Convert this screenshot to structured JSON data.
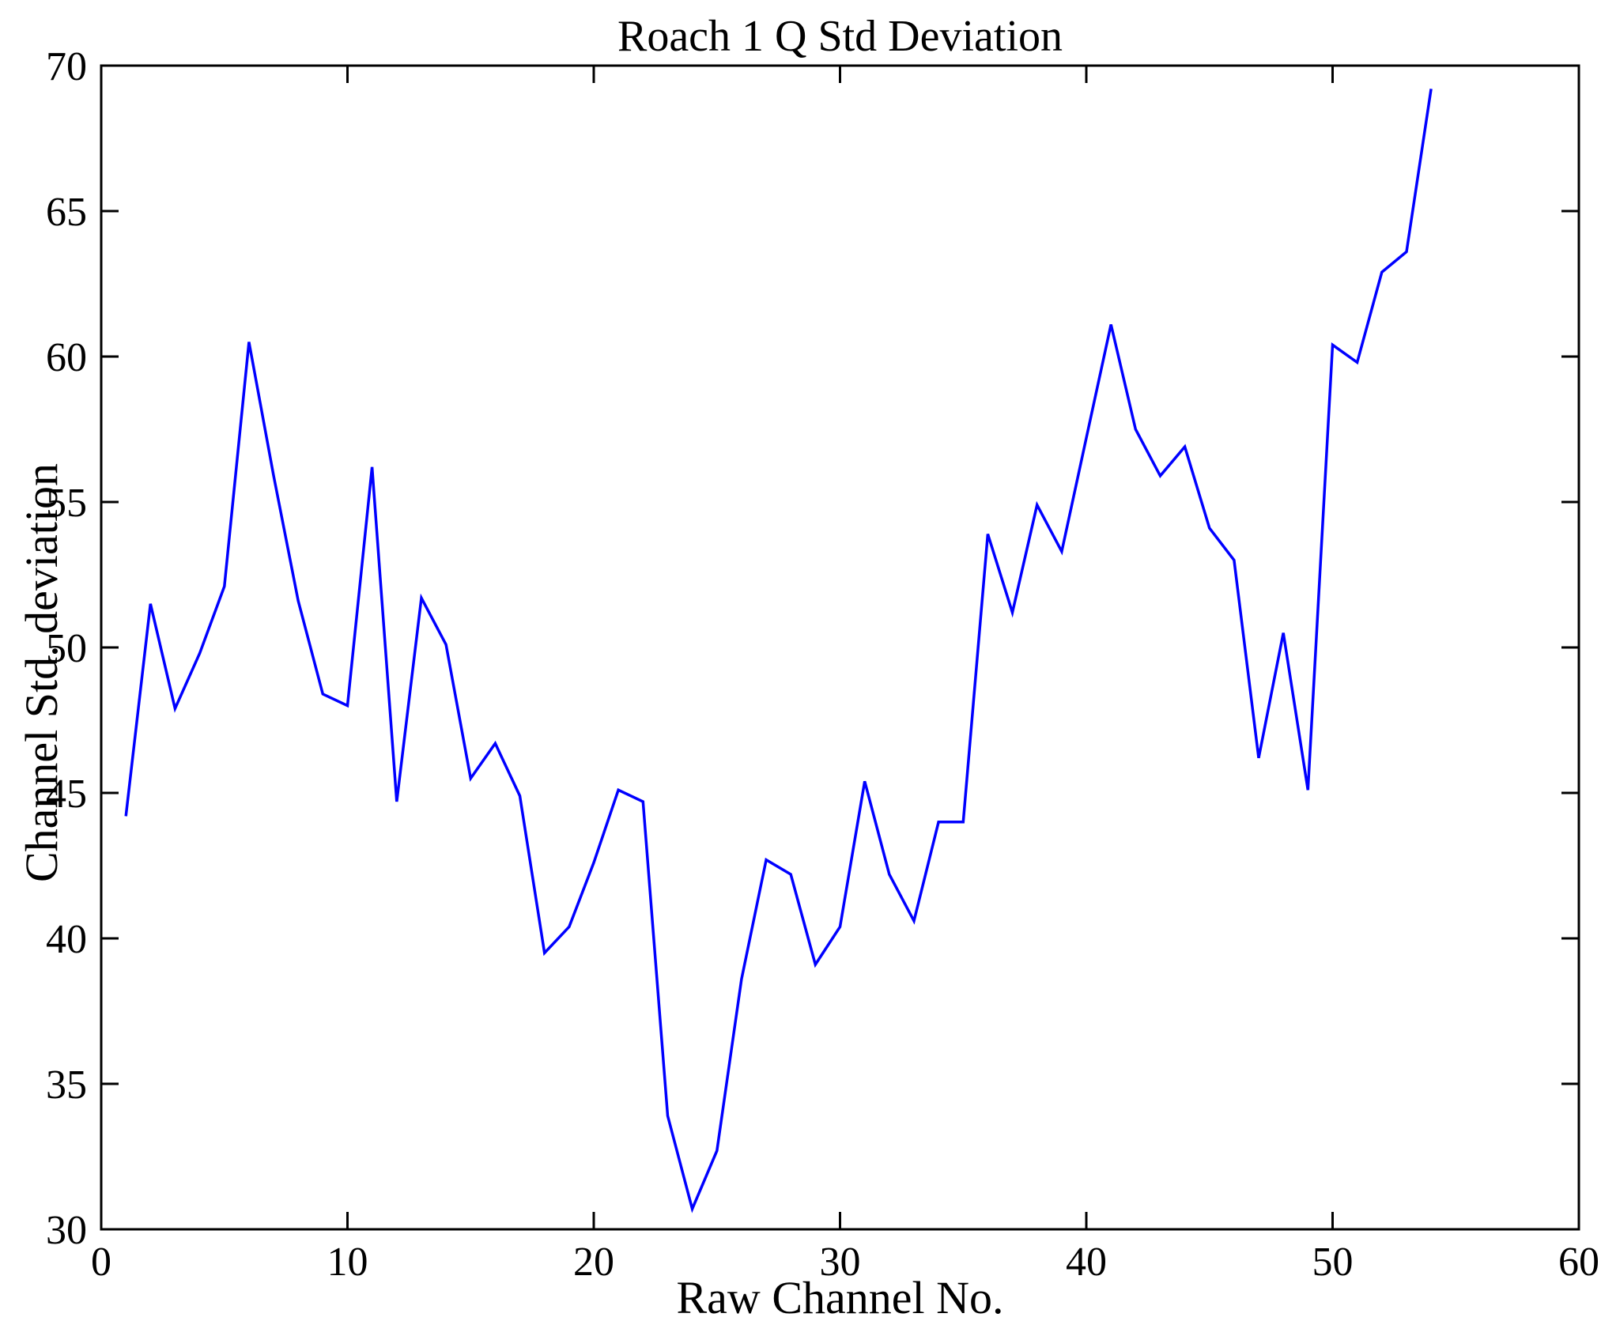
{
  "figure": {
    "title": "Roach 1 Q Std Deviation",
    "xlabel": "Raw Channel No.",
    "ylabel": "Channel Std. deviation",
    "background_color": "#ffffff",
    "axis_color": "#000000",
    "line_color": "#0000ff"
  },
  "chart_data": {
    "type": "line",
    "title": "Roach 1 Q Std Deviation",
    "xlabel": "Raw Channel No.",
    "ylabel": "Channel Std. deviation",
    "xlim": [
      0,
      60
    ],
    "ylim": [
      30,
      70
    ],
    "xticks": [
      0,
      10,
      20,
      30,
      40,
      50,
      60
    ],
    "yticks": [
      30,
      35,
      40,
      45,
      50,
      55,
      60,
      65,
      70
    ],
    "grid": false,
    "legend_position": "none",
    "series_name": "Channel Std. deviation",
    "x": [
      1,
      2,
      3,
      4,
      5,
      6,
      7,
      8,
      9,
      10,
      11,
      12,
      13,
      14,
      15,
      16,
      17,
      18,
      19,
      20,
      21,
      22,
      23,
      24,
      25,
      26,
      27,
      28,
      29,
      30,
      31,
      32,
      33,
      34,
      35,
      36,
      37,
      38,
      39,
      40,
      41,
      42,
      43,
      44,
      45,
      46,
      47,
      48,
      49,
      50,
      51,
      52,
      53,
      54
    ],
    "y": [
      44.2,
      51.5,
      47.9,
      49.8,
      52.1,
      60.5,
      55.9,
      51.6,
      48.4,
      48.0,
      56.2,
      44.7,
      51.7,
      50.1,
      45.5,
      46.7,
      44.9,
      39.5,
      40.4,
      42.6,
      45.1,
      44.7,
      33.9,
      30.7,
      32.7,
      38.6,
      42.7,
      42.2,
      39.1,
      40.4,
      45.4,
      42.2,
      40.6,
      44.0,
      44.0,
      53.9,
      51.2,
      54.9,
      53.3,
      57.2,
      61.1,
      57.5,
      55.9,
      56.9,
      54.1,
      53.0,
      46.2,
      50.5,
      45.1,
      60.4,
      59.8,
      62.9,
      63.6,
      69.2
    ]
  }
}
